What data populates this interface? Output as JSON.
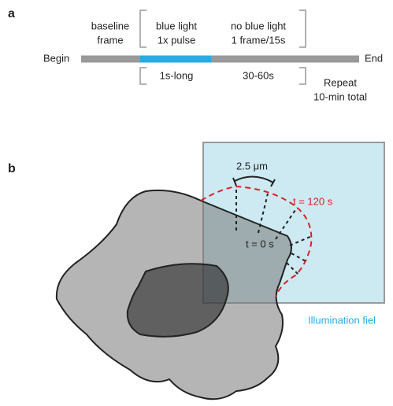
{
  "panel_a": {
    "label": "a",
    "begin": "Begin",
    "end": "End",
    "phases": [
      {
        "top": [
          "baseline",
          "frame"
        ]
      },
      {
        "top": [
          "blue light",
          "1x pulse"
        ],
        "bottom": "1s-long"
      },
      {
        "top": [
          "no blue light",
          "1 frame/15s"
        ],
        "bottom": "30-60s"
      }
    ],
    "repeat": [
      "Repeat",
      "10-min total"
    ]
  },
  "panel_b": {
    "label": "b",
    "scale": "2.5 μm",
    "t_end": "t = 120 s",
    "t_start": "t = 0 s",
    "field": "Illumination fiel"
  }
}
